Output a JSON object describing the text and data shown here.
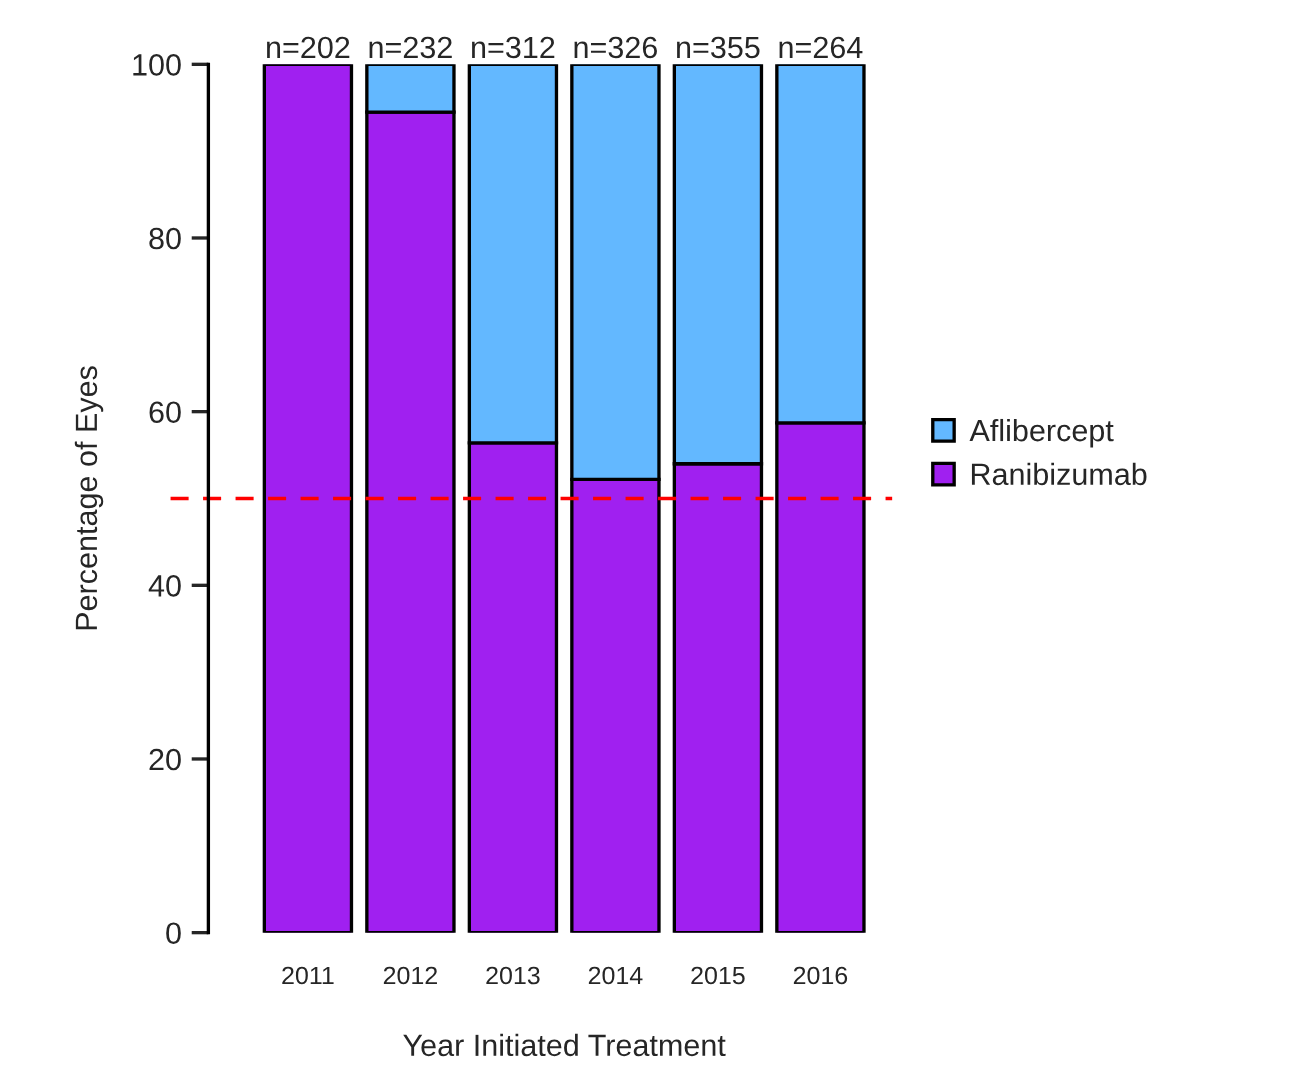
{
  "chart_data": {
    "type": "bar",
    "stacked": true,
    "xlabel": "Year Initiated Treatment",
    "ylabel": "Percentage of Eyes",
    "categories": [
      "2011",
      "2012",
      "2013",
      "2014",
      "2015",
      "2016"
    ],
    "series": [
      {
        "name": "Ranibizumab",
        "color": "#a020f0",
        "values": [
          100,
          94.5,
          56.4,
          52.2,
          54.0,
          58.7
        ]
      },
      {
        "name": "Aflibercept",
        "color": "#63b8ff",
        "values": [
          null,
          5.5,
          43.6,
          47.8,
          46.0,
          41.3
        ]
      }
    ],
    "annotations": [
      {
        "text": "n=202",
        "x": "2011",
        "y": 100
      },
      {
        "text": "n=232",
        "x": "2012",
        "y": 100
      },
      {
        "text": "n=312",
        "x": "2013",
        "y": 100
      },
      {
        "text": "n=326",
        "x": "2014",
        "y": 100
      },
      {
        "text": "n=355",
        "x": "2015",
        "y": 100
      },
      {
        "text": "n=264",
        "x": "2016",
        "y": 100
      }
    ],
    "ylim": [
      0,
      100
    ],
    "yticks": [
      0,
      20,
      40,
      60,
      80,
      100
    ],
    "ref_lines": [
      {
        "axis": "y",
        "value": 50,
        "color": "#ff0000",
        "line_style": "dashed"
      }
    ],
    "legend": "right",
    "grid": false
  }
}
